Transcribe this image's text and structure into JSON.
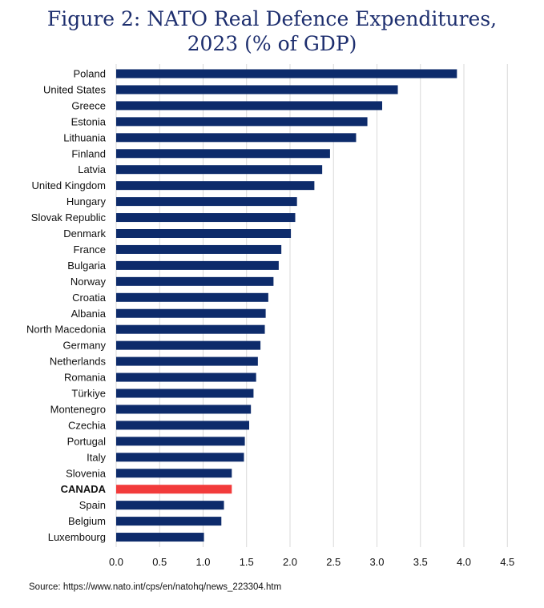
{
  "title_line1": "Figure 2: NATO Real Defence Expenditures,",
  "title_line2": "2023 (% of GDP)",
  "source": "Source: https://www.nato.int/cps/en/natohq/news_223304.htm",
  "colors": {
    "bar": "#0d2b6b",
    "highlight": "#f23b3b",
    "grid": "#d9d9d9",
    "title": "#1d2e6e",
    "text": "#111111"
  },
  "chart_data": {
    "type": "bar",
    "orientation": "horizontal",
    "categories": [
      "Poland",
      "United States",
      "Greece",
      "Estonia",
      "Lithuania",
      "Finland",
      "Latvia",
      "United Kingdom",
      "Hungary",
      "Slovak Republic",
      "Denmark",
      "France",
      "Bulgaria",
      "Norway",
      "Croatia",
      "Albania",
      "North Macedonia",
      "Germany",
      "Netherlands",
      "Romania",
      "Türkiye",
      "Montenegro",
      "Czechia",
      "Portugal",
      "Italy",
      "Slovenia",
      "CANADA",
      "Spain",
      "Belgium",
      "Luxembourg"
    ],
    "values": [
      3.92,
      3.24,
      3.06,
      2.89,
      2.76,
      2.46,
      2.37,
      2.28,
      2.08,
      2.06,
      2.01,
      1.9,
      1.87,
      1.81,
      1.75,
      1.72,
      1.71,
      1.66,
      1.63,
      1.61,
      1.58,
      1.55,
      1.53,
      1.48,
      1.47,
      1.33,
      1.33,
      1.24,
      1.21,
      1.01
    ],
    "highlight": "CANADA",
    "xlim": [
      0,
      4.5
    ],
    "xticks": [
      "0.0",
      "0.5",
      "1.0",
      "1.5",
      "2.0",
      "2.5",
      "3.0",
      "3.5",
      "4.0",
      "4.5"
    ],
    "grid": "vertical",
    "xlabel": "",
    "ylabel": ""
  }
}
